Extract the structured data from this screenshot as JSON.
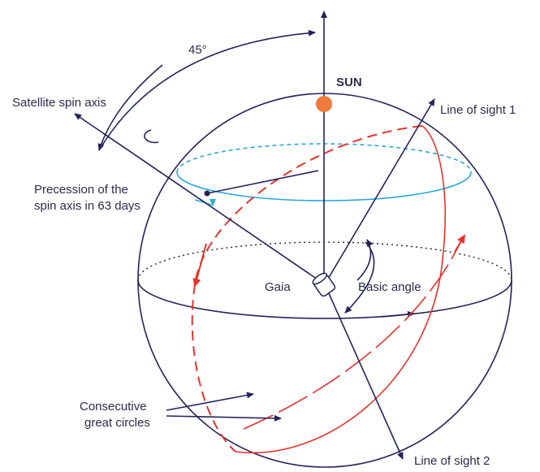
{
  "labels": {
    "angle": "45°",
    "sun": "SUN",
    "spin_axis": "Satellite spin axis",
    "line_of_sight_1": "Line of sight 1",
    "precession": [
      "Precession of the",
      "spin axis in 63 days"
    ],
    "gaia": "Gaia",
    "basic_angle": "Basic angle",
    "great_circles": [
      "Consecutive",
      "great circles"
    ],
    "line_of_sight_2": "Line of sight 2"
  }
}
